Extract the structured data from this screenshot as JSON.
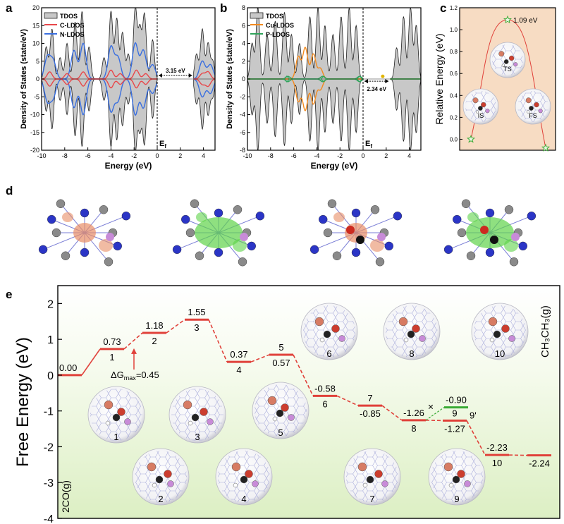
{
  "panels": {
    "a": "a",
    "b": "b",
    "c": "c",
    "d": "d",
    "e": "e"
  },
  "colors": {
    "tdos_fill": "#c8c8c8",
    "c_ldos": "#e8474a",
    "n_ldos": "#3a6fe0",
    "cu_ldos": "#f28a1e",
    "p_ldos": "#2fa35a",
    "path_red": "#e0413a",
    "green_level": "#3aaa35",
    "panel_c_bg": "#f7dcc3",
    "panel_e_top": "#ffffff",
    "panel_e_bottom": "#dff0c6"
  },
  "chart_data": [
    {
      "id": "a",
      "type": "area",
      "xlabel": "Energy (eV)",
      "ylabel": "Density of States (state/eV)",
      "xlim": [
        -10,
        5
      ],
      "ylim": [
        -20,
        20
      ],
      "xticks": [
        "-10",
        "-8",
        "-6",
        "-4",
        "-2",
        "0",
        "2",
        "4"
      ],
      "yticks": [
        "-20",
        "-15",
        "-10",
        "-5",
        "0",
        "5",
        "10",
        "15",
        "20"
      ],
      "legend": [
        "TDOS",
        "C-LDOS",
        "N-LDOS"
      ],
      "legend_position": "top-left",
      "fermi_label": "E",
      "fermi_sub": "f",
      "gap_label": "3.15 eV",
      "gap": [
        0,
        3.15
      ],
      "tdos_peaks": [
        [
          -9.6,
          9
        ],
        [
          -9.1,
          14
        ],
        [
          -8.4,
          6
        ],
        [
          -7.8,
          10
        ],
        [
          -7.1,
          16
        ],
        [
          -6.5,
          19
        ],
        [
          -5.9,
          9
        ],
        [
          -4.6,
          6
        ],
        [
          -4.0,
          19
        ],
        [
          -3.5,
          17
        ],
        [
          -3.0,
          13
        ],
        [
          -2.5,
          7
        ],
        [
          -1.9,
          20
        ],
        [
          -1.5,
          14
        ],
        [
          -1.1,
          18
        ],
        [
          -0.4,
          11
        ],
        [
          3.4,
          7
        ],
        [
          3.9,
          14
        ],
        [
          4.4,
          10
        ],
        [
          4.8,
          5
        ]
      ],
      "c_ldos_peaks": [
        [
          -9.3,
          2
        ],
        [
          -7.8,
          1.5
        ],
        [
          -6.4,
          2
        ],
        [
          -4.0,
          2.5
        ],
        [
          -3.2,
          1.5
        ],
        [
          -1.8,
          2.5
        ],
        [
          -1.0,
          1.5
        ],
        [
          3.9,
          1.5
        ],
        [
          4.4,
          2
        ]
      ],
      "n_ldos_peaks": [
        [
          -9.5,
          6
        ],
        [
          -9.0,
          5
        ],
        [
          -7.2,
          8
        ],
        [
          -6.4,
          10
        ],
        [
          -4.0,
          9
        ],
        [
          -3.4,
          6
        ],
        [
          -1.9,
          10
        ],
        [
          -1.2,
          8
        ],
        [
          -0.4,
          4
        ],
        [
          3.9,
          5
        ],
        [
          4.6,
          4
        ]
      ]
    },
    {
      "id": "b",
      "type": "area",
      "xlabel": "Energy (eV)",
      "ylabel": "Density of States (state/eV)",
      "xlim": [
        -10,
        5
      ],
      "ylim": [
        -8,
        8
      ],
      "xticks": [
        "-10",
        "-8",
        "-6",
        "-4",
        "-2",
        "0",
        "2",
        "4"
      ],
      "yticks": [
        "-8",
        "-6",
        "-4",
        "-2",
        "0",
        "2",
        "4",
        "6",
        "8"
      ],
      "legend": [
        "TDOS",
        "Cu-LDOS",
        "P-LDOS"
      ],
      "legend_position": "top-left",
      "fermi_label": "E",
      "fermi_sub": "f",
      "gap_label": "2.34 eV",
      "gap": [
        0,
        2.34
      ],
      "tdos_peaks": [
        [
          -9.6,
          4
        ],
        [
          -9.1,
          8
        ],
        [
          -8.3,
          5
        ],
        [
          -7.6,
          6.5
        ],
        [
          -6.8,
          7.5
        ],
        [
          -6.2,
          5
        ],
        [
          -5.5,
          4
        ],
        [
          -4.6,
          7
        ],
        [
          -3.9,
          8
        ],
        [
          -3.3,
          6
        ],
        [
          -2.6,
          5
        ],
        [
          -1.9,
          7
        ],
        [
          -1.2,
          8
        ],
        [
          -0.6,
          6
        ],
        [
          1.8,
          2
        ],
        [
          2.9,
          3.5
        ],
        [
          3.5,
          7
        ],
        [
          4.1,
          8
        ],
        [
          4.6,
          6
        ]
      ],
      "cu_ldos_peaks": [
        [
          -5.6,
          2.5
        ],
        [
          -5.0,
          3.5
        ],
        [
          -4.3,
          2.8
        ],
        [
          -3.7,
          1.2
        ]
      ],
      "p_ldos_peaks": [
        [
          -6.5,
          0.3
        ],
        [
          -3.5,
          0.3
        ],
        [
          -0.3,
          0.3
        ],
        [
          1.7,
          0.3
        ]
      ]
    },
    {
      "id": "c",
      "type": "line",
      "ylabel": "Relative Energy (eV)",
      "ylim": [
        -0.1,
        1.2
      ],
      "yticks": [
        "0.0",
        "0.2",
        "0.4",
        "0.6",
        "0.8",
        "1.0",
        "1.2"
      ],
      "barrier_label": "1.09 eV",
      "points": [
        {
          "label": "IS",
          "y": 0.0
        },
        {
          "label": "TS",
          "y": 1.09
        },
        {
          "label": "FS",
          "y": -0.08
        }
      ]
    },
    {
      "id": "e",
      "type": "line",
      "ylabel": "Free Energy (eV)",
      "ylim": [
        -4,
        2.5
      ],
      "yticks": [
        "2",
        "1",
        "0",
        "-1",
        "-2",
        "-3",
        "-4"
      ],
      "start_label": "2CO(g)",
      "end_label": "CH₃CH₃(g)",
      "dg_label": "ΔG",
      "dg_sub": "max",
      "dg_value": "=0.45",
      "levels": [
        {
          "step": "",
          "value": 0.0,
          "label": "0.00"
        },
        {
          "step": "1",
          "value": 0.73,
          "label": "0.73"
        },
        {
          "step": "2",
          "value": 1.18,
          "label": "1.18"
        },
        {
          "step": "3",
          "value": 1.55,
          "label": "1.55"
        },
        {
          "step": "4",
          "value": 0.37,
          "label": "0.37"
        },
        {
          "step": "5",
          "value": 0.57,
          "label": "0.57"
        },
        {
          "step": "6",
          "value": -0.58,
          "label": "-0.58"
        },
        {
          "step": "7",
          "value": -0.85,
          "label": "-0.85"
        },
        {
          "step": "8",
          "value": -1.26,
          "label": "-1.26"
        },
        {
          "step": "9",
          "value": -1.27,
          "label": "-1.27"
        },
        {
          "step": "10",
          "value": -2.23,
          "label": "-2.23"
        },
        {
          "step": "",
          "value": -2.24,
          "label": "-2.24"
        }
      ],
      "branch": {
        "step": "9'",
        "value": -0.9,
        "label": "-0.90"
      },
      "structures_top": [
        "6",
        "8",
        "10"
      ],
      "structures_mid": [
        "1",
        "3",
        "5"
      ],
      "structures_bottom": [
        "2",
        "4",
        "7",
        "9"
      ]
    }
  ]
}
